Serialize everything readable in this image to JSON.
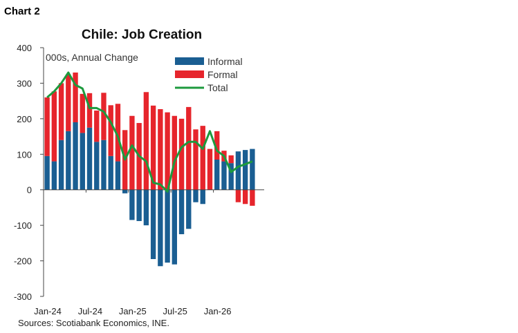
{
  "chart_label": "Chart 2",
  "chart_data": {
    "type": "bar",
    "title": "Chile: Job Creation",
    "unit_note": "000s, Annual Change",
    "source": "Sources: Scotiabank Economics, INE.",
    "ylim": [
      -300,
      400
    ],
    "y_ticks": [
      -300,
      -200,
      -100,
      0,
      100,
      200,
      300,
      400
    ],
    "x_tick_labels": [
      {
        "index": 0,
        "label": "Jan-24"
      },
      {
        "index": 6,
        "label": "Jul-24"
      },
      {
        "index": 12,
        "label": "Jan-25"
      },
      {
        "index": 18,
        "label": "Jul-25"
      },
      {
        "index": 24,
        "label": "Jan-26"
      }
    ],
    "legend_position": "top-right",
    "categories": [
      "Jan-24",
      "Feb-24",
      "Mar-24",
      "Apr-24",
      "May-24",
      "Jun-24",
      "Jul-24",
      "Aug-24",
      "Sep-24",
      "Oct-24",
      "Nov-24",
      "Dec-24",
      "Jan-25",
      "Feb-25",
      "Mar-25",
      "Apr-25",
      "May-25",
      "Jun-25",
      "Jul-25",
      "Aug-25",
      "Sep-25",
      "Oct-25",
      "Nov-25",
      "Dec-25",
      "Jan-26",
      "Feb-26",
      "Mar-26",
      "Apr-26",
      "May-26",
      "Jun-26"
    ],
    "series": [
      {
        "name": "Informal",
        "kind": "bar",
        "color": "#1a5e92",
        "values": [
          95,
          80,
          140,
          165,
          190,
          160,
          175,
          135,
          140,
          95,
          80,
          -10,
          -85,
          -88,
          -100,
          -195,
          -215,
          -205,
          -210,
          -125,
          -110,
          -35,
          -40,
          0,
          85,
          80,
          75,
          108,
          112,
          115
        ]
      },
      {
        "name": "Formal",
        "kind": "bar",
        "color": "#e6252c",
        "values": [
          165,
          197,
          160,
          160,
          140,
          110,
          97,
          88,
          133,
          143,
          162,
          168,
          208,
          188,
          275,
          237,
          227,
          218,
          208,
          200,
          233,
          170,
          180,
          115,
          80,
          30,
          22,
          -35,
          -40,
          -45
        ]
      },
      {
        "name": "Total",
        "kind": "line",
        "color": "#1d9a3e",
        "values": [
          260,
          277,
          300,
          330,
          295,
          285,
          230,
          230,
          220,
          190,
          150,
          85,
          125,
          95,
          80,
          20,
          15,
          -5,
          80,
          120,
          135,
          135,
          115,
          165,
          110,
          95,
          50,
          65,
          72,
          80
        ]
      }
    ]
  }
}
